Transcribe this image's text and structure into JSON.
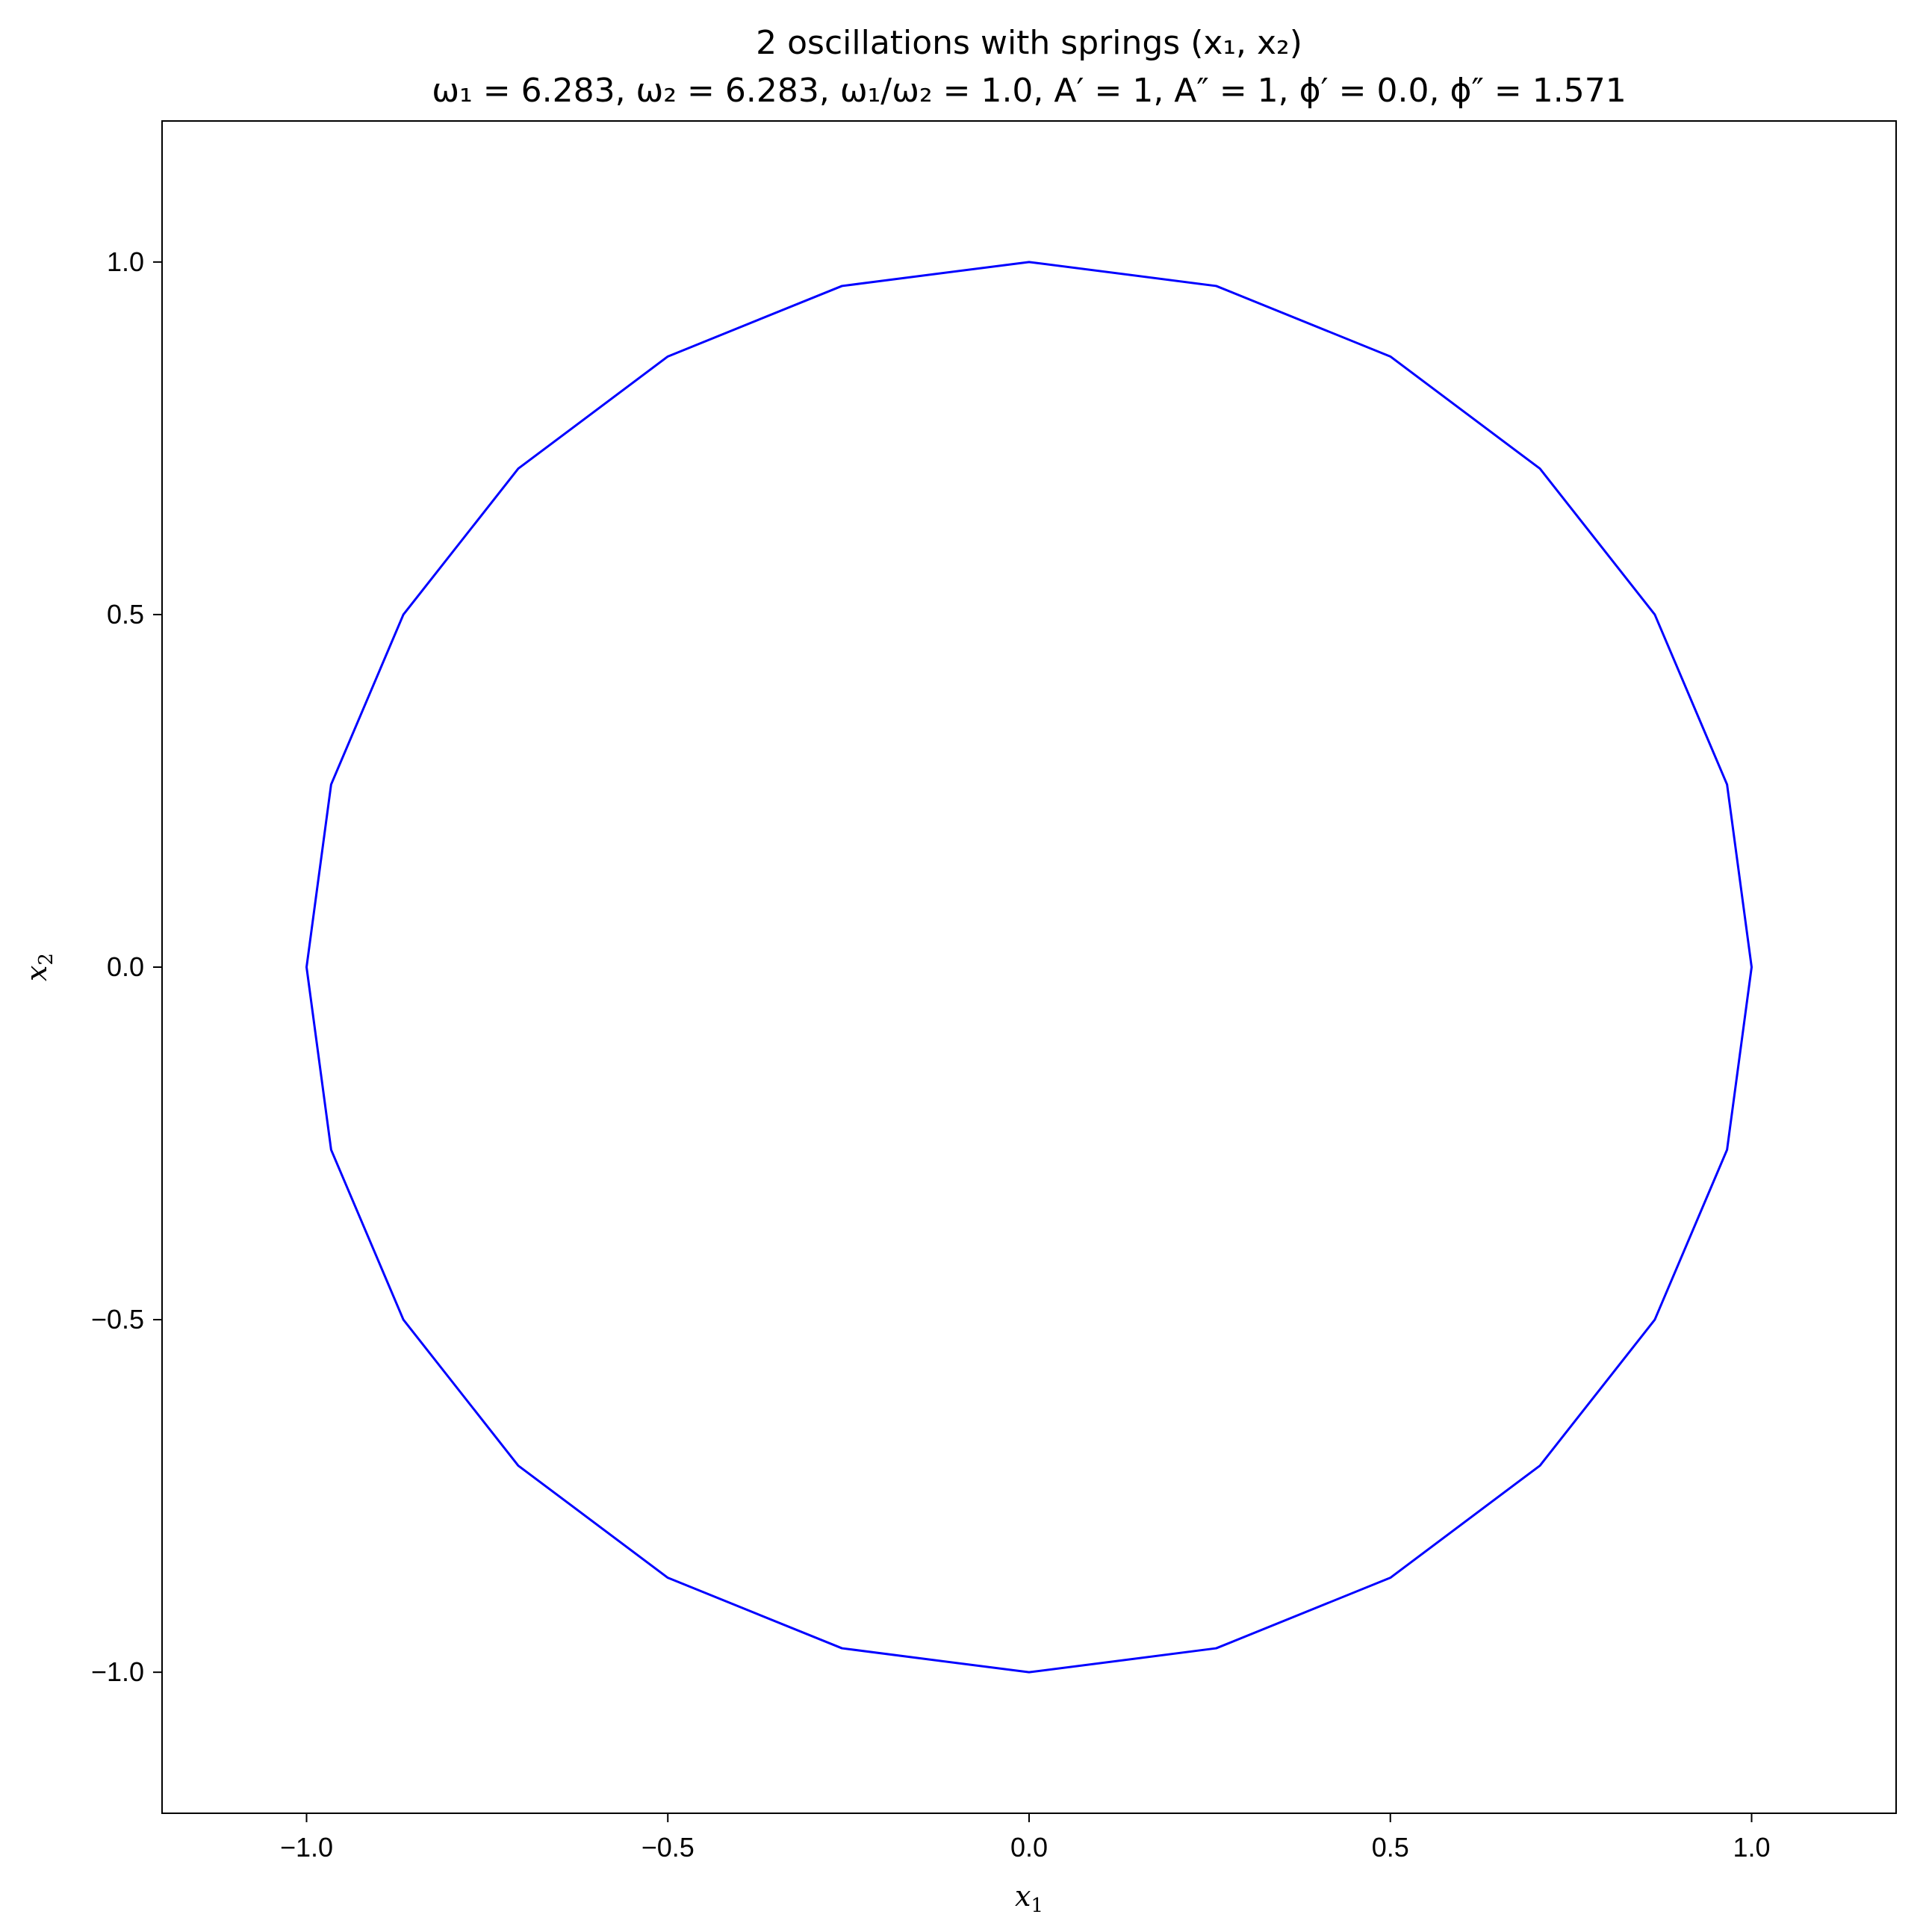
{
  "chart_data": {
    "type": "line",
    "title": "2 oscillations with springs (x₁, x₂)",
    "subtitle": "ω₁ = 6.283, ω₂ = 6.283, ω₁/ω₂ = 1.0, A′ = 1, A″ = 1, ϕ′ = 0.0, ϕ″ = 1.571",
    "xlabel": {
      "main": "x",
      "sub": "1"
    },
    "ylabel": {
      "main": "x",
      "sub": "2"
    },
    "xlim": [
      -1.2,
      1.2
    ],
    "ylim": [
      -1.2,
      1.2
    ],
    "xticks": [
      -1.0,
      -0.5,
      0.0,
      0.5,
      1.0
    ],
    "yticks": [
      -1.0,
      -0.5,
      0.0,
      0.5,
      1.0
    ],
    "xtick_labels": [
      "−1.0",
      "−0.5",
      "0.0",
      "0.5",
      "1.0"
    ],
    "ytick_labels": [
      "−1.0",
      "−0.5",
      "0.0",
      "0.5",
      "1.0"
    ],
    "grid": false,
    "series": [
      {
        "color": "#0000ff",
        "x": [
          1.0,
          0.966,
          0.866,
          0.707,
          0.5,
          0.259,
          0.0,
          -0.259,
          -0.5,
          -0.707,
          -0.866,
          -0.966,
          -1.0,
          -0.966,
          -0.866,
          -0.707,
          -0.5,
          -0.259,
          0.0,
          0.259,
          0.5,
          0.707,
          0.866,
          0.966,
          1.0
        ],
        "y": [
          0.0,
          0.259,
          0.5,
          0.707,
          0.866,
          0.966,
          1.0,
          0.966,
          0.866,
          0.707,
          0.5,
          0.259,
          0.0,
          -0.259,
          -0.5,
          -0.707,
          -0.866,
          -0.966,
          -1.0,
          -0.966,
          -0.866,
          -0.707,
          -0.5,
          -0.259,
          0.0
        ]
      }
    ]
  }
}
